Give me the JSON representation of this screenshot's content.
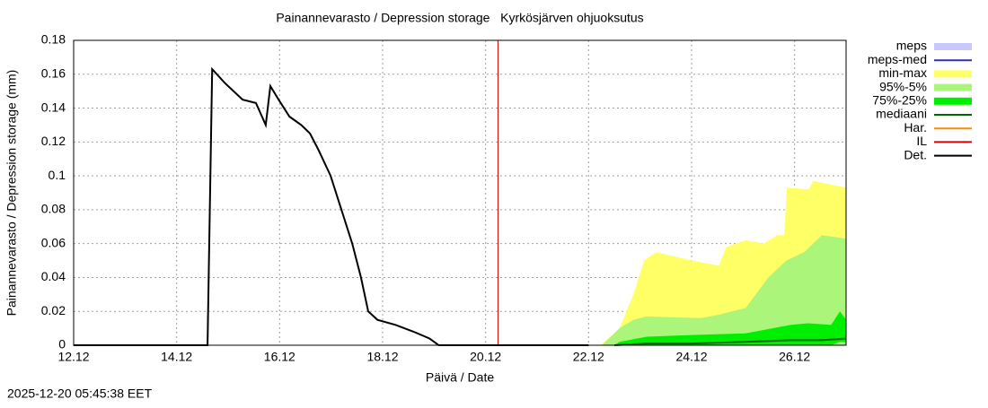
{
  "chart_data": {
    "type": "line",
    "title": "Painannevarasto / Depression storage   Kyrkösjärven ohjuoksutus",
    "xlabel": "Päivä / Date",
    "ylabel": "Painannevarasto / Depression storage (mm)",
    "timestamp": "2025-12-20 05:45:38 EET",
    "xlim": [
      0,
      15
    ],
    "xticks": [
      {
        "value": 0,
        "label": "12.12"
      },
      {
        "value": 2,
        "label": "14.12"
      },
      {
        "value": 4,
        "label": "16.12"
      },
      {
        "value": 6,
        "label": "18.12"
      },
      {
        "value": 8,
        "label": "20.12"
      },
      {
        "value": 10,
        "label": "22.12"
      },
      {
        "value": 12,
        "label": "24.12"
      },
      {
        "value": 14,
        "label": "26.12"
      }
    ],
    "ylim": [
      0,
      0.18
    ],
    "yticks": [
      0,
      0.02,
      0.04,
      0.06,
      0.08,
      0.1,
      0.12,
      0.14,
      0.16,
      0.18
    ],
    "grid": true,
    "now_line": {
      "x": 8.24,
      "color": "#cc0000"
    },
    "series": [
      {
        "name": "meps",
        "kind": "band",
        "color": "#c8c8ff",
        "x": [],
        "low": [],
        "values": []
      },
      {
        "name": "meps-med",
        "kind": "line",
        "color": "#3030b0",
        "x": [],
        "values": []
      },
      {
        "name": "min-max",
        "kind": "band",
        "color": "#ffff66",
        "x": [
          10.23,
          10.6,
          10.87,
          11.08,
          11.31,
          12.0,
          12.53,
          12.67,
          13.05,
          13.4,
          13.66,
          13.8,
          13.85,
          14.27,
          14.36,
          15
        ],
        "low": [
          0,
          0,
          0,
          0,
          0,
          0,
          0,
          0,
          0,
          0,
          0,
          0,
          0,
          0,
          0,
          0
        ],
        "values": [
          0,
          0.01,
          0.03,
          0.05,
          0.055,
          0.05,
          0.047,
          0.058,
          0.062,
          0.06,
          0.065,
          0.065,
          0.093,
          0.092,
          0.097,
          0.093
        ]
      },
      {
        "name": "95%-5%",
        "kind": "band",
        "color": "#aaf57a",
        "x": [
          10.26,
          10.6,
          10.87,
          11.13,
          12.18,
          12.53,
          13.05,
          13.49,
          13.84,
          14.19,
          14.53,
          15
        ],
        "low": [
          0,
          0,
          0,
          0,
          0,
          0,
          0,
          0,
          0,
          0,
          0,
          0
        ],
        "values": [
          0,
          0.01,
          0.015,
          0.017,
          0.016,
          0.018,
          0.022,
          0.04,
          0.05,
          0.055,
          0.065,
          0.063
        ]
      },
      {
        "name": "75%-25%",
        "kind": "band",
        "color": "#00ee00",
        "x": [
          10.5,
          10.6,
          11.13,
          12.0,
          13.05,
          13.92,
          14.27,
          14.71,
          14.88,
          15
        ],
        "low": [
          0,
          0,
          0,
          0,
          0,
          0,
          0,
          0,
          0.002,
          0.002
        ],
        "values": [
          0,
          0.002,
          0.005,
          0.006,
          0.007,
          0.012,
          0.013,
          0.012,
          0.02,
          0.015
        ]
      },
      {
        "name": "mediaani",
        "kind": "line",
        "color": "#006600",
        "x": [
          10.5,
          11.13,
          12.0,
          13.05,
          13.92,
          14.53,
          15
        ],
        "values": [
          0,
          0.001,
          0.001,
          0.002,
          0.003,
          0.003,
          0.004
        ]
      },
      {
        "name": "Har.",
        "kind": "line",
        "color": "#ff8c00",
        "x": [],
        "values": []
      },
      {
        "name": "IL",
        "kind": "line",
        "color": "#dd0000",
        "x": [],
        "values": []
      },
      {
        "name": "Det.",
        "kind": "line",
        "color": "#000000",
        "x": [
          0,
          2.6,
          2.69,
          2.93,
          3.28,
          3.54,
          3.73,
          3.82,
          3.98,
          4.19,
          4.42,
          4.59,
          4.76,
          4.99,
          5.2,
          5.41,
          5.58,
          5.72,
          5.9,
          6.25,
          6.6,
          6.91,
          7.09,
          10
        ],
        "values": [
          0,
          0,
          0.163,
          0.155,
          0.145,
          0.143,
          0.13,
          0.153,
          0.145,
          0.135,
          0.13,
          0.125,
          0.115,
          0.1,
          0.08,
          0.06,
          0.04,
          0.02,
          0.015,
          0.012,
          0.008,
          0.004,
          0,
          0
        ]
      }
    ]
  }
}
